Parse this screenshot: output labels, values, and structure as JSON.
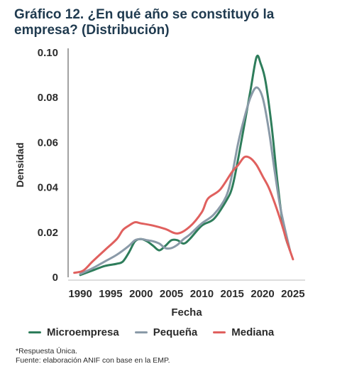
{
  "title_line1": "Gráfico 12. ¿En qué año se constituyó la",
  "title_line2": "empresa? (Distribución)",
  "footnote_line1": "*Respuesta Única.",
  "footnote_line2": "Fuente: elaboración ANIF con base en la EMP.",
  "chart_data": {
    "type": "line",
    "xlabel": "Fecha",
    "ylabel": "Densidad",
    "xlim": [
      1988,
      2027
    ],
    "ylim": [
      0,
      0.1
    ],
    "x_ticks": [
      1990,
      1995,
      2000,
      2005,
      2010,
      2015,
      2020,
      2025
    ],
    "x_tick_labels": [
      "1990",
      "1995",
      "2000",
      "2005",
      "2010",
      "2015",
      "2020",
      "2025"
    ],
    "y_ticks": [
      0,
      0.02,
      0.04,
      0.06,
      0.08,
      0.1
    ],
    "y_tick_labels": [
      "0",
      "0.02",
      "0.04",
      "0.06",
      "0.08",
      "0.10"
    ],
    "grid": false,
    "legend_position": "bottom",
    "series": [
      {
        "name": "Microempresa",
        "color": "#2e7d5b",
        "points": [
          [
            1990,
            0.001
          ],
          [
            1992,
            0.003
          ],
          [
            1994,
            0.005
          ],
          [
            1996,
            0.006
          ],
          [
            1997,
            0.007
          ],
          [
            1998,
            0.011
          ],
          [
            1999,
            0.016
          ],
          [
            2000,
            0.017
          ],
          [
            2001,
            0.016
          ],
          [
            2002,
            0.014
          ],
          [
            2003,
            0.012
          ],
          [
            2004,
            0.014
          ],
          [
            2005,
            0.0165
          ],
          [
            2006,
            0.0165
          ],
          [
            2007,
            0.015
          ],
          [
            2008,
            0.017
          ],
          [
            2010,
            0.023
          ],
          [
            2012,
            0.026
          ],
          [
            2014,
            0.034
          ],
          [
            2015,
            0.04
          ],
          [
            2016,
            0.053
          ],
          [
            2017,
            0.068
          ],
          [
            2018,
            0.083
          ],
          [
            2019,
            0.098
          ],
          [
            2019.7,
            0.095
          ],
          [
            2020.5,
            0.087
          ],
          [
            2021.5,
            0.067
          ],
          [
            2022.5,
            0.041
          ],
          [
            2023.5,
            0.021
          ],
          [
            2024.5,
            0.012
          ]
        ]
      },
      {
        "name": "Pequeña",
        "color": "#8a9aa8",
        "points": [
          [
            1990,
            0.0015
          ],
          [
            1992,
            0.004
          ],
          [
            1994,
            0.007
          ],
          [
            1996,
            0.01
          ],
          [
            1998,
            0.014
          ],
          [
            1999,
            0.0165
          ],
          [
            2000,
            0.017
          ],
          [
            2001,
            0.0165
          ],
          [
            2002,
            0.016
          ],
          [
            2003,
            0.015
          ],
          [
            2004,
            0.013
          ],
          [
            2005,
            0.013
          ],
          [
            2006,
            0.0145
          ],
          [
            2007,
            0.017
          ],
          [
            2008,
            0.019
          ],
          [
            2010,
            0.024
          ],
          [
            2012,
            0.028
          ],
          [
            2014,
            0.036
          ],
          [
            2015,
            0.046
          ],
          [
            2016,
            0.06
          ],
          [
            2017,
            0.071
          ],
          [
            2018,
            0.08
          ],
          [
            2019,
            0.0845
          ],
          [
            2020,
            0.08
          ],
          [
            2021,
            0.066
          ],
          [
            2022,
            0.047
          ],
          [
            2023,
            0.03
          ],
          [
            2024.5,
            0.012
          ]
        ]
      },
      {
        "name": "Mediana",
        "color": "#e0605e",
        "points": [
          [
            1989,
            0.002
          ],
          [
            1990.5,
            0.003
          ],
          [
            1992,
            0.007
          ],
          [
            1994,
            0.012
          ],
          [
            1996,
            0.017
          ],
          [
            1997,
            0.021
          ],
          [
            1998,
            0.023
          ],
          [
            1999,
            0.0245
          ],
          [
            2000,
            0.024
          ],
          [
            2002,
            0.023
          ],
          [
            2004,
            0.0215
          ],
          [
            2006,
            0.0195
          ],
          [
            2008,
            0.0225
          ],
          [
            2010,
            0.029
          ],
          [
            2011,
            0.035
          ],
          [
            2013,
            0.039
          ],
          [
            2015,
            0.047
          ],
          [
            2016,
            0.05
          ],
          [
            2017,
            0.0535
          ],
          [
            2018,
            0.053
          ],
          [
            2019,
            0.05
          ],
          [
            2020,
            0.045
          ],
          [
            2021,
            0.04
          ],
          [
            2022,
            0.033
          ],
          [
            2023,
            0.025
          ],
          [
            2024,
            0.016
          ],
          [
            2025,
            0.008
          ]
        ]
      }
    ]
  }
}
